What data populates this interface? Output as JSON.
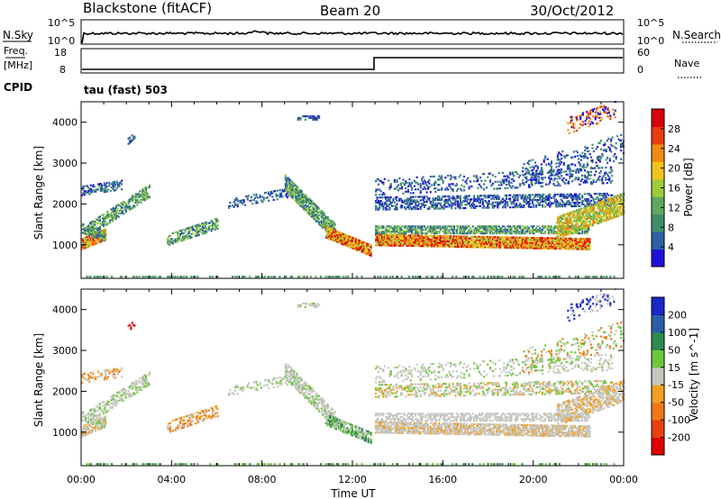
{
  "header": {
    "station": "Blackstone (fitACF)",
    "beam": "Beam 20",
    "date": "30/Oct/2012"
  },
  "strips": {
    "nsky_label": "N.Sky",
    "nsky_ticks": [
      "10^5",
      "10^0"
    ],
    "nsearch_label": "N.Search",
    "nsearch_ticks": [
      "10^5",
      "10^0"
    ],
    "freq_label_1": "Freq.",
    "freq_label_2": "[MHz]",
    "freq_ticks": [
      "18",
      "8"
    ],
    "nave_label": "Nave",
    "nave_ticks": [
      "60",
      "0"
    ],
    "cpid_label": "CPID",
    "cpid_value": "tau (fast) 503"
  },
  "chart_data": [
    {
      "type": "heatmap",
      "panel": "power",
      "ylabel": "Slant Range [km]",
      "yticks": [
        1000,
        2000,
        3000,
        4000
      ],
      "ylim": [
        180,
        4500
      ],
      "xlim": [
        0,
        24
      ],
      "colorbar_label": "Power [dB]",
      "colorbar_ticks": [
        "4",
        "8",
        "12",
        "16",
        "20",
        "24",
        "28"
      ],
      "colorbar_colors": [
        "#1e10d8",
        "#2e5fa4",
        "#3e8e6a",
        "#5fa85e",
        "#9ccc3c",
        "#f2c21a",
        "#f08a10",
        "#e83c0c",
        "#d8000a"
      ]
    },
    {
      "type": "heatmap",
      "panel": "velocity",
      "ylabel": "Slant Range [km]",
      "yticks": [
        1000,
        2000,
        3000,
        4000
      ],
      "ylim": [
        180,
        4500
      ],
      "xlim": [
        0,
        24
      ],
      "xticks": [
        "00:00",
        "04:00",
        "08:00",
        "12:00",
        "16:00",
        "20:00",
        "00:00"
      ],
      "xlabel": "Time UT",
      "colorbar_label": "Velocity [m s^-1]",
      "colorbar_ticks": [
        "200",
        "100",
        "50",
        "15",
        "-15",
        "-50",
        "-100",
        "-200"
      ],
      "colorbar_colors": [
        "#1a28c8",
        "#2a5fa8",
        "#2e8a50",
        "#6cc83a",
        "#c6c6c0",
        "#f2a020",
        "#f07818",
        "#e84010",
        "#e00000"
      ]
    }
  ]
}
